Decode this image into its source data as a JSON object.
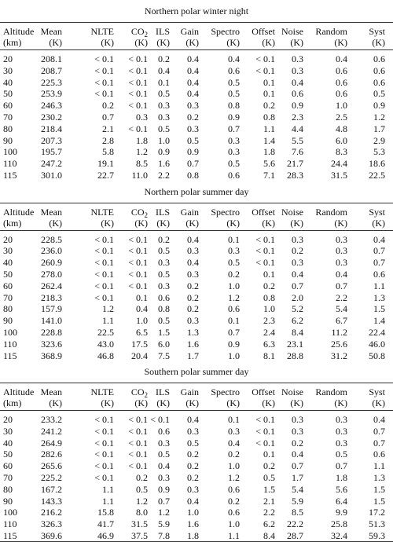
{
  "header": [
    {
      "name": "Altitude",
      "unit": "(km)"
    },
    {
      "name": "Mean",
      "unit": "(K)"
    },
    {
      "name": "NLTE",
      "unit": "(K)"
    },
    {
      "name": "CO",
      "sub": "2",
      "unit": "(K)"
    },
    {
      "name": "ILS",
      "unit": "(K)"
    },
    {
      "name": "Gain",
      "unit": "(K)"
    },
    {
      "name": "Spectro",
      "unit": "(K)"
    },
    {
      "name": "Offset",
      "unit": "(K)"
    },
    {
      "name": "Noise",
      "unit": "(K)"
    },
    {
      "name": "Random",
      "unit": "(K)"
    },
    {
      "name": "Syst",
      "unit": "(K)"
    }
  ],
  "sections": [
    {
      "title": "Northern polar winter night",
      "rows": [
        [
          "20",
          "208.1",
          "< 0.1",
          "< 0.1",
          "0.2",
          "0.4",
          "0.4",
          "< 0.1",
          "0.3",
          "0.4",
          "0.6"
        ],
        [
          "30",
          "208.7",
          "< 0.1",
          "< 0.1",
          "0.4",
          "0.4",
          "0.6",
          "< 0.1",
          "0.3",
          "0.6",
          "0.6"
        ],
        [
          "40",
          "225.3",
          "< 0.1",
          "< 0.1",
          "0.1",
          "0.4",
          "0.5",
          "0.1",
          "0.4",
          "0.6",
          "0.6"
        ],
        [
          "50",
          "253.9",
          "< 0.1",
          "< 0.1",
          "0.5",
          "0.4",
          "0.5",
          "0.1",
          "0.6",
          "0.6",
          "0.5"
        ],
        [
          "60",
          "246.3",
          "0.2",
          "< 0.1",
          "0.3",
          "0.3",
          "0.8",
          "0.2",
          "0.9",
          "1.0",
          "0.9"
        ],
        [
          "70",
          "230.2",
          "0.7",
          "0.3",
          "0.3",
          "0.2",
          "0.9",
          "0.8",
          "2.3",
          "2.5",
          "1.2"
        ],
        [
          "80",
          "218.4",
          "2.1",
          "< 0.1",
          "0.5",
          "0.3",
          "0.7",
          "1.1",
          "4.4",
          "4.8",
          "1.7"
        ],
        [
          "90",
          "207.3",
          "2.8",
          "1.8",
          "1.0",
          "0.5",
          "0.3",
          "1.4",
          "5.5",
          "6.0",
          "2.9"
        ],
        [
          "100",
          "195.7",
          "5.8",
          "1.2",
          "0.9",
          "0.9",
          "0.3",
          "1.8",
          "7.6",
          "8.3",
          "5.3"
        ],
        [
          "110",
          "247.2",
          "19.1",
          "8.5",
          "1.6",
          "0.7",
          "0.5",
          "5.6",
          "21.7",
          "24.4",
          "18.6"
        ],
        [
          "115",
          "301.0",
          "22.7",
          "11.0",
          "2.2",
          "0.8",
          "0.6",
          "7.1",
          "28.3",
          "31.5",
          "22.5"
        ]
      ]
    },
    {
      "title": "Northern polar summer day",
      "rows": [
        [
          "20",
          "228.5",
          "< 0.1",
          "< 0.1",
          "0.2",
          "0.4",
          "0.1",
          "< 0.1",
          "0.3",
          "0.3",
          "0.4"
        ],
        [
          "30",
          "236.0",
          "< 0.1",
          "< 0.1",
          "0.5",
          "0.3",
          "0.3",
          "< 0.1",
          "0.2",
          "0.3",
          "0.7"
        ],
        [
          "40",
          "260.9",
          "< 0.1",
          "< 0.1",
          "0.3",
          "0.4",
          "0.5",
          "< 0.1",
          "0.3",
          "0.3",
          "0.7"
        ],
        [
          "50",
          "278.0",
          "< 0.1",
          "< 0.1",
          "0.5",
          "0.3",
          "0.2",
          "0.1",
          "0.4",
          "0.4",
          "0.6"
        ],
        [
          "60",
          "262.4",
          "< 0.1",
          "< 0.1",
          "0.3",
          "0.2",
          "1.0",
          "0.2",
          "0.7",
          "0.7",
          "1.1"
        ],
        [
          "70",
          "218.3",
          "< 0.1",
          "0.1",
          "0.6",
          "0.2",
          "1.2",
          "0.8",
          "2.0",
          "2.2",
          "1.3"
        ],
        [
          "80",
          "157.9",
          "1.2",
          "0.4",
          "0.8",
          "0.2",
          "0.6",
          "1.0",
          "5.2",
          "5.4",
          "1.5"
        ],
        [
          "90",
          "141.0",
          "1.1",
          "1.0",
          "0.5",
          "0.3",
          "0.1",
          "2.3",
          "6.2",
          "6.7",
          "1.4"
        ],
        [
          "100",
          "228.8",
          "22.5",
          "6.5",
          "1.5",
          "1.3",
          "0.7",
          "2.4",
          "8.4",
          "11.2",
          "22.4"
        ],
        [
          "110",
          "323.6",
          "43.0",
          "17.5",
          "6.0",
          "1.6",
          "0.9",
          "6.3",
          "23.1",
          "25.6",
          "46.0"
        ],
        [
          "115",
          "368.9",
          "46.8",
          "20.4",
          "7.5",
          "1.7",
          "1.0",
          "8.1",
          "28.8",
          "31.2",
          "50.8"
        ]
      ]
    },
    {
      "title": "Southern polar summer day",
      "rows": [
        [
          "20",
          "233.2",
          "< 0.1",
          "< 0.1",
          "< 0.1",
          "0.4",
          "0.1",
          "< 0.1",
          "0.3",
          "0.3",
          "0.4"
        ],
        [
          "30",
          "241.2",
          "< 0.1",
          "< 0.1",
          "0.6",
          "0.3",
          "0.3",
          "< 0.1",
          "0.3",
          "0.3",
          "0.7"
        ],
        [
          "40",
          "264.9",
          "< 0.1",
          "< 0.1",
          "0.3",
          "0.5",
          "0.4",
          "< 0.1",
          "0.2",
          "0.3",
          "0.7"
        ],
        [
          "50",
          "282.6",
          "< 0.1",
          "< 0.1",
          "0.5",
          "0.2",
          "0.2",
          "0.1",
          "0.4",
          "0.5",
          "0.6"
        ],
        [
          "60",
          "265.6",
          "< 0.1",
          "< 0.1",
          "0.4",
          "0.2",
          "1.0",
          "0.2",
          "0.7",
          "0.7",
          "1.1"
        ],
        [
          "70",
          "225.2",
          "< 0.1",
          "0.2",
          "0.3",
          "0.2",
          "1.2",
          "0.5",
          "1.7",
          "1.8",
          "1.3"
        ],
        [
          "80",
          "167.2",
          "1.1",
          "0.5",
          "0.9",
          "0.3",
          "0.6",
          "1.5",
          "5.4",
          "5.6",
          "1.5"
        ],
        [
          "90",
          "143.3",
          "1.1",
          "1.2",
          "0.7",
          "0.4",
          "0.2",
          "2.1",
          "5.9",
          "6.4",
          "1.5"
        ],
        [
          "100",
          "216.2",
          "15.8",
          "8.0",
          "1.2",
          "1.0",
          "0.6",
          "2.2",
          "8.5",
          "9.9",
          "17.2"
        ],
        [
          "110",
          "326.3",
          "41.7",
          "31.5",
          "5.9",
          "1.6",
          "1.0",
          "6.2",
          "22.2",
          "25.8",
          "51.3"
        ],
        [
          "115",
          "369.6",
          "46.9",
          "37.5",
          "7.8",
          "1.8",
          "1.1",
          "8.4",
          "28.7",
          "32.4",
          "59.3"
        ]
      ]
    }
  ]
}
